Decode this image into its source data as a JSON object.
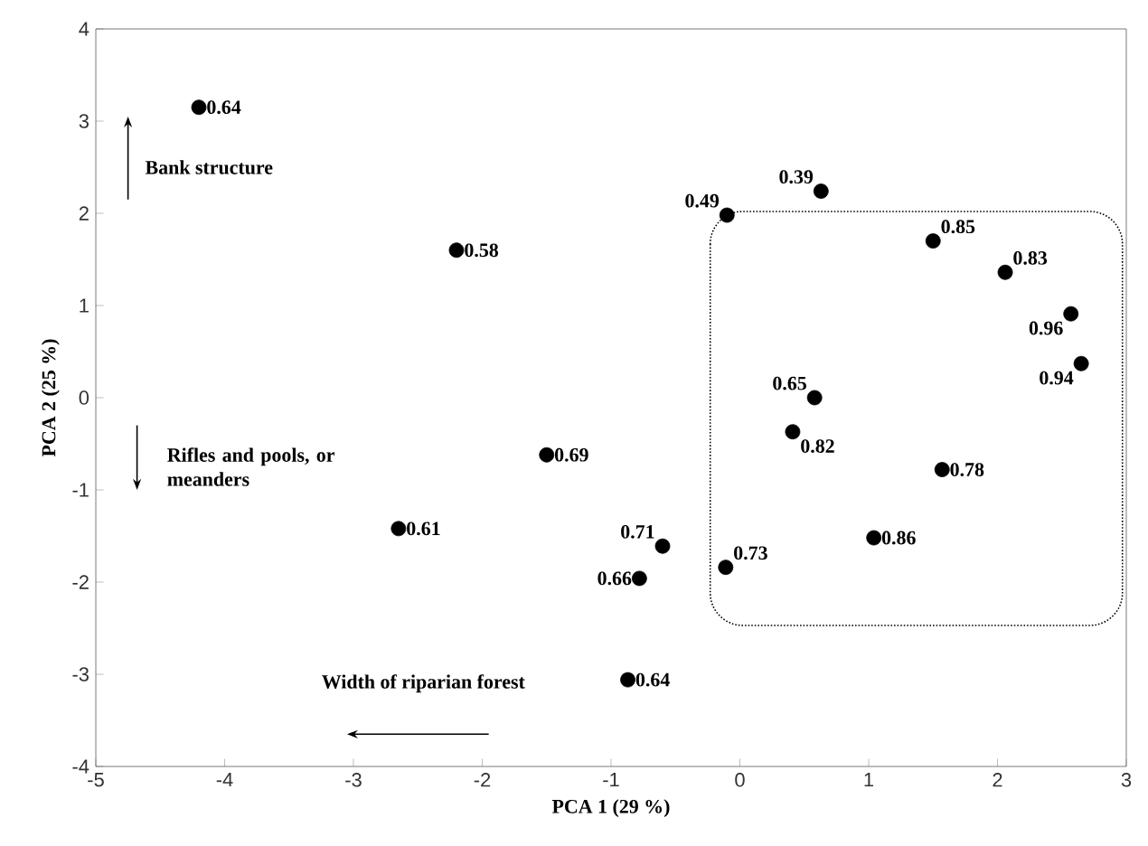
{
  "chart_data": {
    "type": "scatter",
    "xlabel": "PCA 1 (29 %)",
    "ylabel": "PCA 2 (25 %)",
    "xlim": [
      -5,
      3
    ],
    "ylim": [
      -4,
      4
    ],
    "xticks": [
      -5,
      -4,
      -3,
      -2,
      -1,
      0,
      1,
      2,
      3
    ],
    "yticks": [
      -4,
      -3,
      -2,
      -1,
      0,
      1,
      2,
      3,
      4
    ],
    "marker": "circle",
    "color": "#000000",
    "x": [
      -4.2,
      -2.2,
      -2.65,
      -1.5,
      -0.6,
      -0.78,
      -0.87,
      -0.11,
      -0.1,
      0.63,
      1.5,
      2.06,
      2.57,
      2.65,
      0.58,
      0.41,
      1.57,
      1.04
    ],
    "values": [
      3.15,
      1.6,
      -1.42,
      -0.62,
      -1.61,
      -1.96,
      -3.06,
      -1.84,
      1.98,
      2.24,
      1.7,
      1.36,
      0.91,
      0.37,
      0.0,
      -0.37,
      -0.78,
      -1.52
    ],
    "annotations": [
      "Bank structure",
      "Rifles and pools, or meanders",
      "Width of riparian forest",
      {
        "text": "0.64",
        "x": -4.2,
        "y": 3.15
      },
      {
        "text": "0.58",
        "x": -2.2,
        "y": 1.6
      },
      {
        "text": "0.61",
        "x": -2.65,
        "y": -1.42
      },
      {
        "text": "0.69",
        "x": -1.5,
        "y": -0.62
      },
      {
        "text": "0.71",
        "x": -0.6,
        "y": -1.61
      },
      {
        "text": "0.66",
        "x": -0.78,
        "y": -1.96
      },
      {
        "text": "0.64",
        "x": -0.87,
        "y": -3.06
      },
      {
        "text": "0.73",
        "x": -0.11,
        "y": -1.84
      },
      {
        "text": "0.49",
        "x": -0.1,
        "y": 1.98
      },
      {
        "text": "0.39",
        "x": 0.63,
        "y": 2.24
      },
      {
        "text": "0.85",
        "x": 1.5,
        "y": 1.7
      },
      {
        "text": "0.83",
        "x": 2.06,
        "y": 1.36
      },
      {
        "text": "0.96",
        "x": 2.57,
        "y": 0.91
      },
      {
        "text": "0.94",
        "x": 2.65,
        "y": 0.37
      },
      {
        "text": "0.65",
        "x": 0.58,
        "y": 0.0
      },
      {
        "text": "0.82",
        "x": 0.41,
        "y": -0.37
      },
      {
        "text": "0.78",
        "x": 1.57,
        "y": -0.78
      },
      {
        "text": "0.86",
        "x": 1.04,
        "y": -1.52
      }
    ]
  }
}
